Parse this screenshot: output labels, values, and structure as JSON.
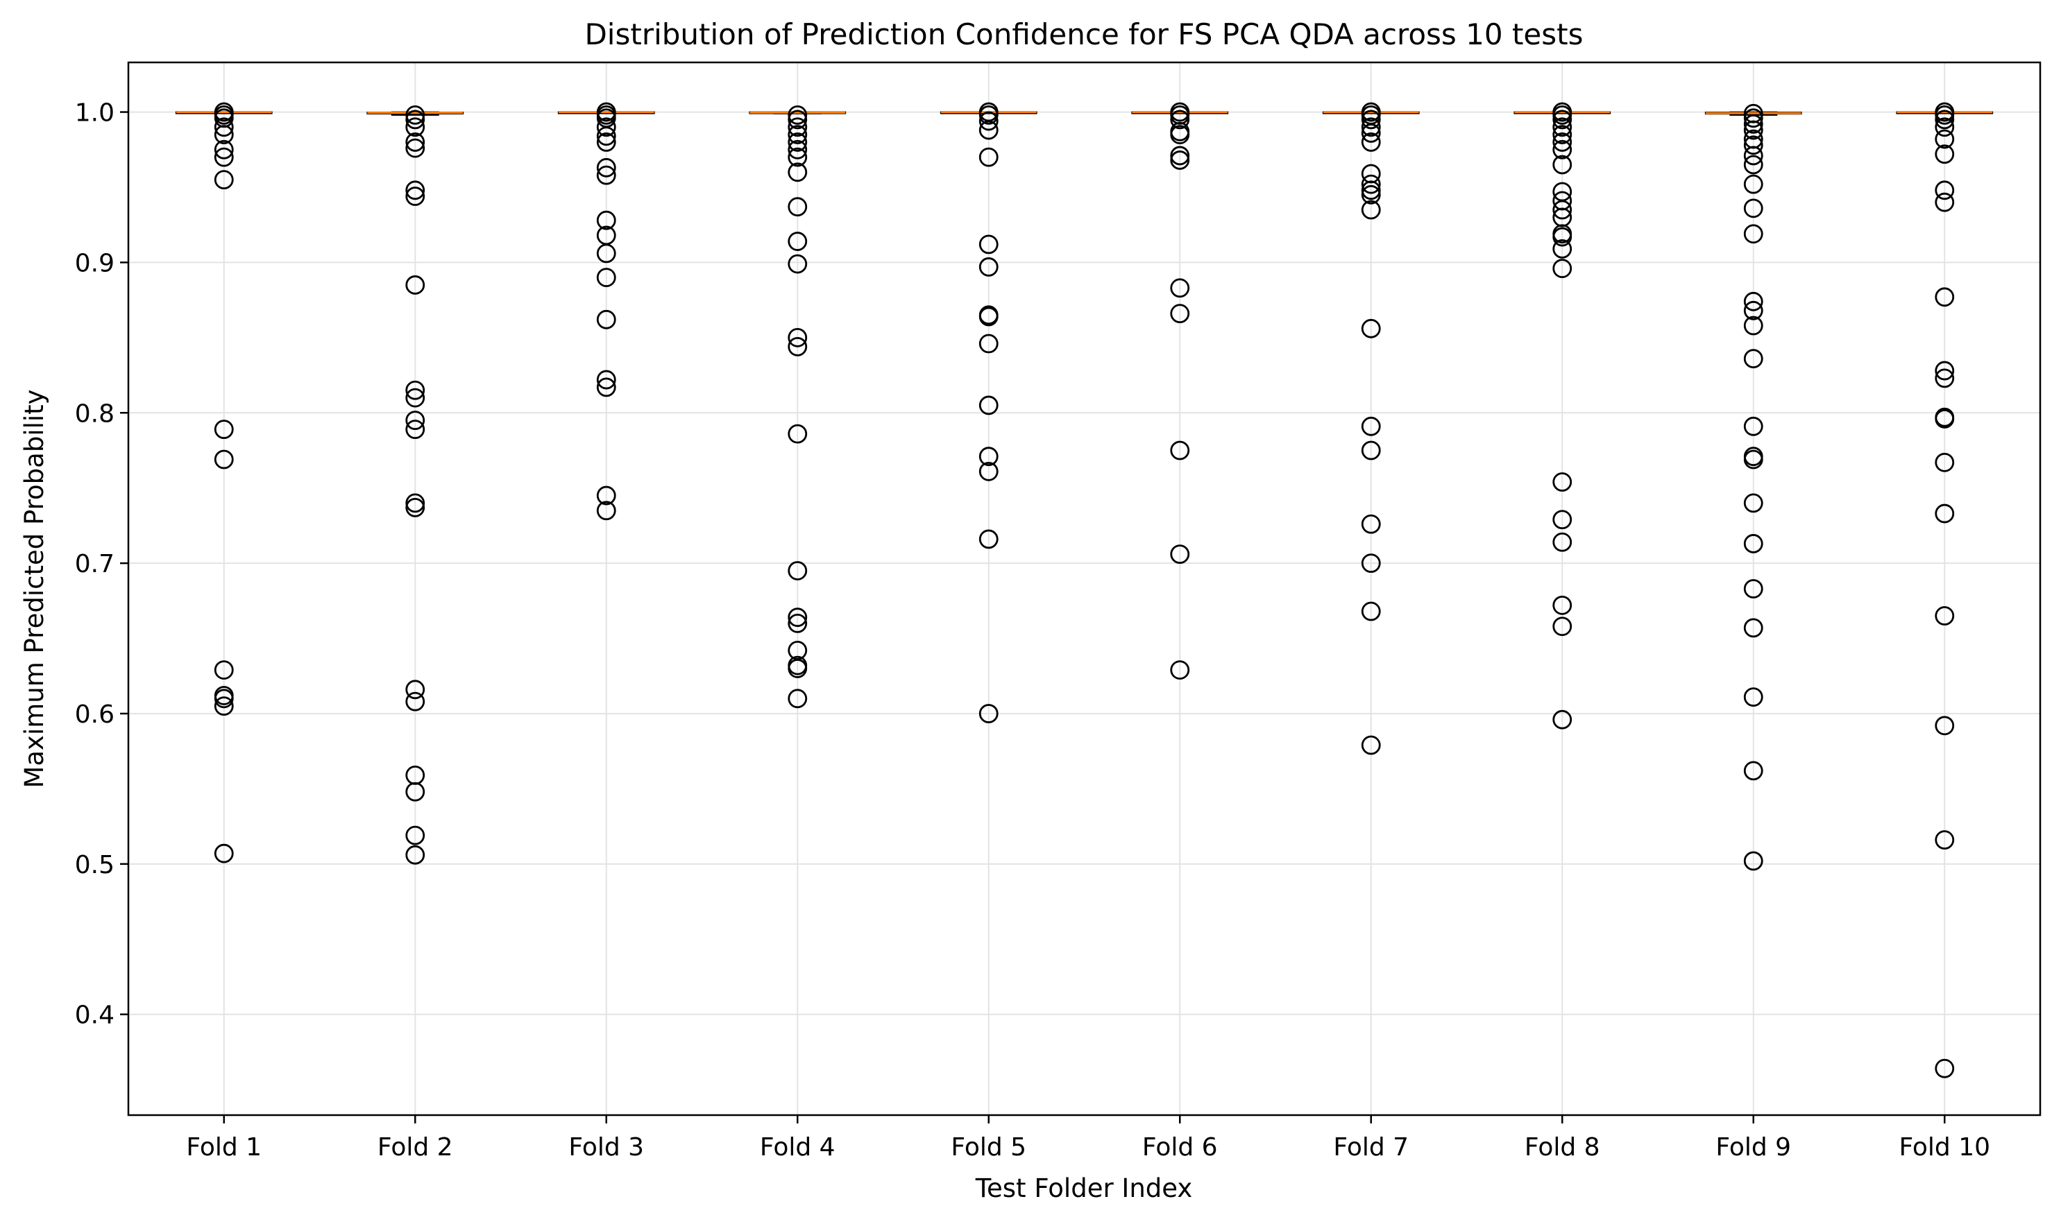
{
  "chart_data": {
    "type": "box",
    "title": "Distribution of Prediction Confidence for FS PCA QDA across 10 tests",
    "xlabel": "Test Folder Index",
    "ylabel": "Maximum Predicted Probability",
    "categories": [
      "Fold 1",
      "Fold 2",
      "Fold 3",
      "Fold 4",
      "Fold 5",
      "Fold 6",
      "Fold 7",
      "Fold 8",
      "Fold 9",
      "Fold 10"
    ],
    "ylim": [
      0.333,
      1.033
    ],
    "yticks": [
      0.4,
      0.5,
      0.6,
      0.7,
      0.8,
      0.9,
      1.0
    ],
    "ytick_labels": [
      "0.4",
      "0.5",
      "0.6",
      "0.7",
      "0.8",
      "0.9",
      "1.0"
    ],
    "grid": true,
    "median_color": "#ff7f0e",
    "box_color": "#000000",
    "boxes": [
      {
        "median": 1.0,
        "q1": 0.9998,
        "q3": 1.0,
        "whisker_low": 0.9995,
        "whisker_high": 1.0
      },
      {
        "median": 0.9995,
        "q1": 0.999,
        "q3": 0.9998,
        "whisker_low": 0.998,
        "whisker_high": 1.0
      },
      {
        "median": 1.0,
        "q1": 0.9998,
        "q3": 1.0,
        "whisker_low": 0.9995,
        "whisker_high": 1.0
      },
      {
        "median": 0.9997,
        "q1": 0.9993,
        "q3": 1.0,
        "whisker_low": 0.999,
        "whisker_high": 1.0
      },
      {
        "median": 1.0,
        "q1": 0.9998,
        "q3": 1.0,
        "whisker_low": 0.9995,
        "whisker_high": 1.0
      },
      {
        "median": 1.0,
        "q1": 0.9998,
        "q3": 1.0,
        "whisker_low": 0.9995,
        "whisker_high": 1.0
      },
      {
        "median": 1.0,
        "q1": 0.9998,
        "q3": 1.0,
        "whisker_low": 0.9995,
        "whisker_high": 1.0
      },
      {
        "median": 1.0,
        "q1": 0.9998,
        "q3": 1.0,
        "whisker_low": 0.9995,
        "whisker_high": 1.0
      },
      {
        "median": 0.9993,
        "q1": 0.9988,
        "q3": 0.9998,
        "whisker_low": 0.998,
        "whisker_high": 1.0
      },
      {
        "median": 1.0,
        "q1": 0.9998,
        "q3": 1.0,
        "whisker_low": 0.9995,
        "whisker_high": 1.0
      }
    ],
    "outliers": [
      [
        1.0,
        0.998,
        0.996,
        0.99,
        0.985,
        0.975,
        0.97,
        0.955,
        0.789,
        0.769,
        0.629,
        0.612,
        0.61,
        0.605,
        0.507
      ],
      [
        0.998,
        0.995,
        0.99,
        0.98,
        0.976,
        0.948,
        0.944,
        0.885,
        0.815,
        0.81,
        0.795,
        0.789,
        0.74,
        0.737,
        0.616,
        0.608,
        0.559,
        0.548,
        0.519,
        0.506
      ],
      [
        1.0,
        0.998,
        0.996,
        0.99,
        0.984,
        0.98,
        0.963,
        0.958,
        0.928,
        0.918,
        0.906,
        0.89,
        0.862,
        0.822,
        0.817,
        0.745,
        0.735
      ],
      [
        0.998,
        0.995,
        0.99,
        0.985,
        0.98,
        0.975,
        0.97,
        0.96,
        0.937,
        0.914,
        0.899,
        0.85,
        0.844,
        0.786,
        0.695,
        0.664,
        0.66,
        0.642,
        0.632,
        0.63,
        0.61
      ],
      [
        1.0,
        0.998,
        0.994,
        0.988,
        0.97,
        0.912,
        0.897,
        0.865,
        0.864,
        0.846,
        0.805,
        0.771,
        0.761,
        0.716,
        0.6
      ],
      [
        1.0,
        0.998,
        0.995,
        0.987,
        0.985,
        0.971,
        0.968,
        0.883,
        0.866,
        0.775,
        0.706,
        0.629
      ],
      [
        1.0,
        0.998,
        0.995,
        0.99,
        0.986,
        0.98,
        0.959,
        0.952,
        0.948,
        0.945,
        0.935,
        0.856,
        0.791,
        0.775,
        0.726,
        0.7,
        0.668,
        0.579
      ],
      [
        1.0,
        0.998,
        0.995,
        0.99,
        0.985,
        0.98,
        0.975,
        0.965,
        0.947,
        0.941,
        0.935,
        0.93,
        0.919,
        0.917,
        0.909,
        0.896,
        0.754,
        0.729,
        0.714,
        0.672,
        0.658,
        0.596
      ],
      [
        0.999,
        0.996,
        0.992,
        0.988,
        0.982,
        0.978,
        0.971,
        0.965,
        0.952,
        0.936,
        0.919,
        0.874,
        0.868,
        0.858,
        0.836,
        0.791,
        0.771,
        0.769,
        0.74,
        0.713,
        0.683,
        0.657,
        0.611,
        0.562,
        0.502
      ],
      [
        1.0,
        0.998,
        0.995,
        0.99,
        0.982,
        0.972,
        0.948,
        0.94,
        0.877,
        0.828,
        0.823,
        0.797,
        0.796,
        0.767,
        0.733,
        0.665,
        0.592,
        0.516,
        0.364
      ]
    ]
  }
}
